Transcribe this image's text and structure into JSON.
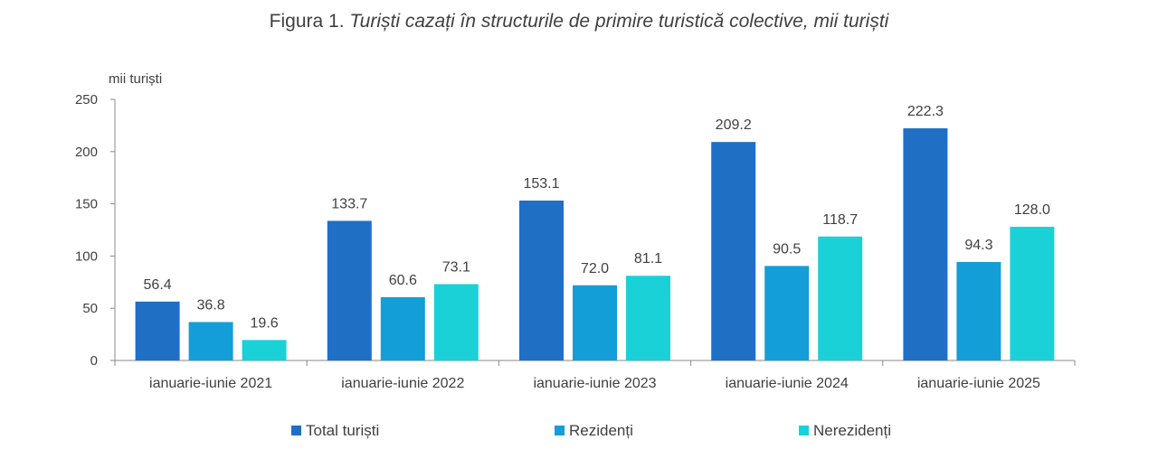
{
  "title_prefix": "Figura 1.",
  "title_text": "Turiști cazați în structurile de primire turistică colective, mii turiști",
  "chart_data": {
    "type": "bar",
    "title": "Figura 1. Turiști cazați în structurile de primire turistică colective, mii turiști",
    "ylabel": "mii turiști",
    "xlabel": "",
    "ylim": [
      0,
      250
    ],
    "yticks": [
      0,
      50,
      100,
      150,
      200,
      250
    ],
    "categories": [
      "ianuarie-iunie 2021",
      "ianuarie-iunie 2022",
      "ianuarie-iunie 2023",
      "ianuarie-iunie 2024",
      "ianuarie-iunie 2025"
    ],
    "series": [
      {
        "name": "Total turiști",
        "color": "#1f6fc5",
        "values": [
          56.4,
          133.7,
          153.1,
          209.2,
          222.3
        ],
        "labels": [
          "56.4",
          "133.7",
          "153.1",
          "209.2",
          "222.3"
        ]
      },
      {
        "name": "Rezidenți",
        "color": "#139ed8",
        "values": [
          36.8,
          60.6,
          72.0,
          90.5,
          94.3
        ],
        "labels": [
          "36.8",
          "60.6",
          "72.0",
          "90.5",
          "94.3"
        ]
      },
      {
        "name": "Nerezidenți",
        "color": "#1ad1d8",
        "values": [
          19.6,
          73.1,
          81.1,
          118.7,
          128.0
        ],
        "labels": [
          "19.6",
          "73.1",
          "81.1",
          "118.7",
          "128.0"
        ]
      }
    ],
    "legend_position": "bottom"
  }
}
